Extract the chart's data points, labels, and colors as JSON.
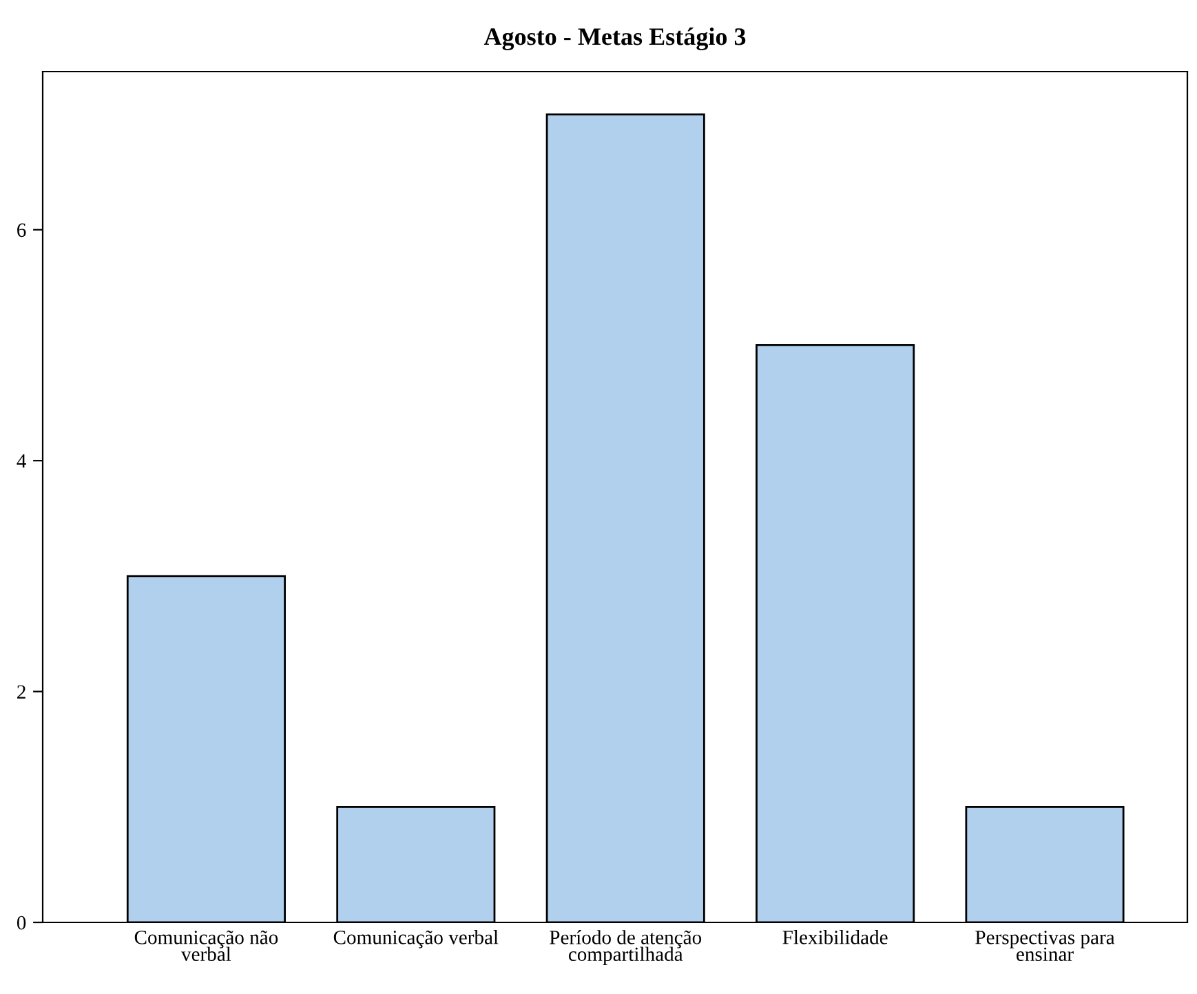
{
  "chart_data": {
    "type": "bar",
    "title": "Agosto - Metas Estágio 3",
    "categories": [
      "Comunicação não\nverbal",
      "Comunicação verbal",
      "Período de atenção\ncompartilhada",
      "Flexibilidade",
      "Perspectivas para\nensinar"
    ],
    "values": [
      3,
      1,
      7,
      5,
      1
    ],
    "color": "#b0d0ee",
    "ylim": [
      0,
      7.37
    ],
    "yticks": [
      0,
      2,
      4,
      6
    ],
    "grid": false
  }
}
